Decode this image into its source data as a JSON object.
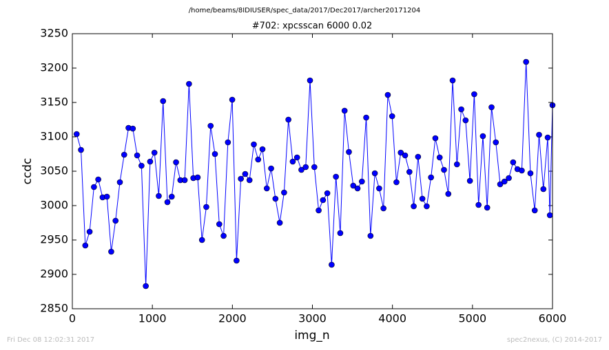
{
  "chart_data": {
    "type": "line",
    "subtitle": "/home/beams/8IDIUSER/spec_data/2017/Dec2017/archer20171204",
    "title": "#702: xpcsscan 6000 0.02",
    "x_label": "img_n",
    "y_label": "ccdc",
    "annotations": [
      "Fri Dec 08 12:02:31 2017",
      "spec2nexus, (C) 2014-2017"
    ],
    "xlim": [
      0,
      6000
    ],
    "xticks": [
      0,
      1000,
      2000,
      3000,
      4000,
      5000,
      6000
    ],
    "ylim": [
      2850,
      3250
    ],
    "yticks": [
      2850,
      2900,
      2950,
      3000,
      3050,
      3100,
      3150,
      3200,
      3250
    ],
    "grid": false,
    "x": [
      54,
      108,
      162,
      216,
      270,
      324,
      378,
      432,
      486,
      540,
      594,
      648,
      702,
      756,
      810,
      864,
      918,
      972,
      1026,
      1080,
      1134,
      1188,
      1242,
      1296,
      1350,
      1404,
      1458,
      1512,
      1566,
      1620,
      1674,
      1728,
      1782,
      1836,
      1890,
      1944,
      1998,
      2052,
      2106,
      2160,
      2214,
      2268,
      2322,
      2376,
      2430,
      2484,
      2538,
      2592,
      2646,
      2700,
      2754,
      2808,
      2862,
      2916,
      2970,
      3024,
      3078,
      3132,
      3186,
      3240,
      3294,
      3348,
      3402,
      3456,
      3510,
      3564,
      3618,
      3672,
      3726,
      3780,
      3834,
      3888,
      3942,
      3996,
      4050,
      4104,
      4158,
      4212,
      4266,
      4320,
      4374,
      4428,
      4482,
      4536,
      4590,
      4644,
      4698,
      4752,
      4806,
      4860,
      4914,
      4968,
      5022,
      5076,
      5130,
      5184,
      5238,
      5292,
      5346,
      5400,
      5454,
      5508,
      5562,
      5616,
      5670,
      5724,
      5778,
      5832,
      5886,
      5940,
      5967,
      6000
    ],
    "series": [
      {
        "color": "#0000ff",
        "marker_edge": "#000000",
        "values": [
          3104,
          3081,
          2942,
          2962,
          3027,
          3038,
          3012,
          3013,
          2933,
          2978,
          3034,
          3074,
          3113,
          3112,
          3073,
          3058,
          2883,
          3064,
          3077,
          3014,
          3152,
          3005,
          3013,
          3063,
          3037,
          3037,
          3177,
          3040,
          3041,
          2950,
          2998,
          3116,
          3075,
          2973,
          2956,
          3092,
          3154,
          2920,
          3039,
          3046,
          3037,
          3089,
          3067,
          3082,
          3025,
          3054,
          3010,
          2975,
          3019,
          3125,
          3064,
          3070,
          3052,
          3056,
          3182,
          3056,
          2993,
          3008,
          3018,
          2914,
          3042,
          2960,
          3138,
          3078,
          3029,
          3025,
          3035,
          3128,
          2956,
          3047,
          3025,
          2996,
          3161,
          3130,
          3034,
          3077,
          3073,
          3049,
          2999,
          3071,
          3010,
          2999,
          3041,
          3098,
          3070,
          3052,
          3017,
          3182,
          3060,
          3140,
          3124,
          3036,
          3162,
          3001,
          3101,
          2997,
          3143,
          3092,
          3031,
          3035,
          3040,
          3063,
          3053,
          3051,
          3209,
          3047,
          2993,
          3103,
          3024,
          3099,
          2986,
          3146
        ]
      }
    ]
  }
}
